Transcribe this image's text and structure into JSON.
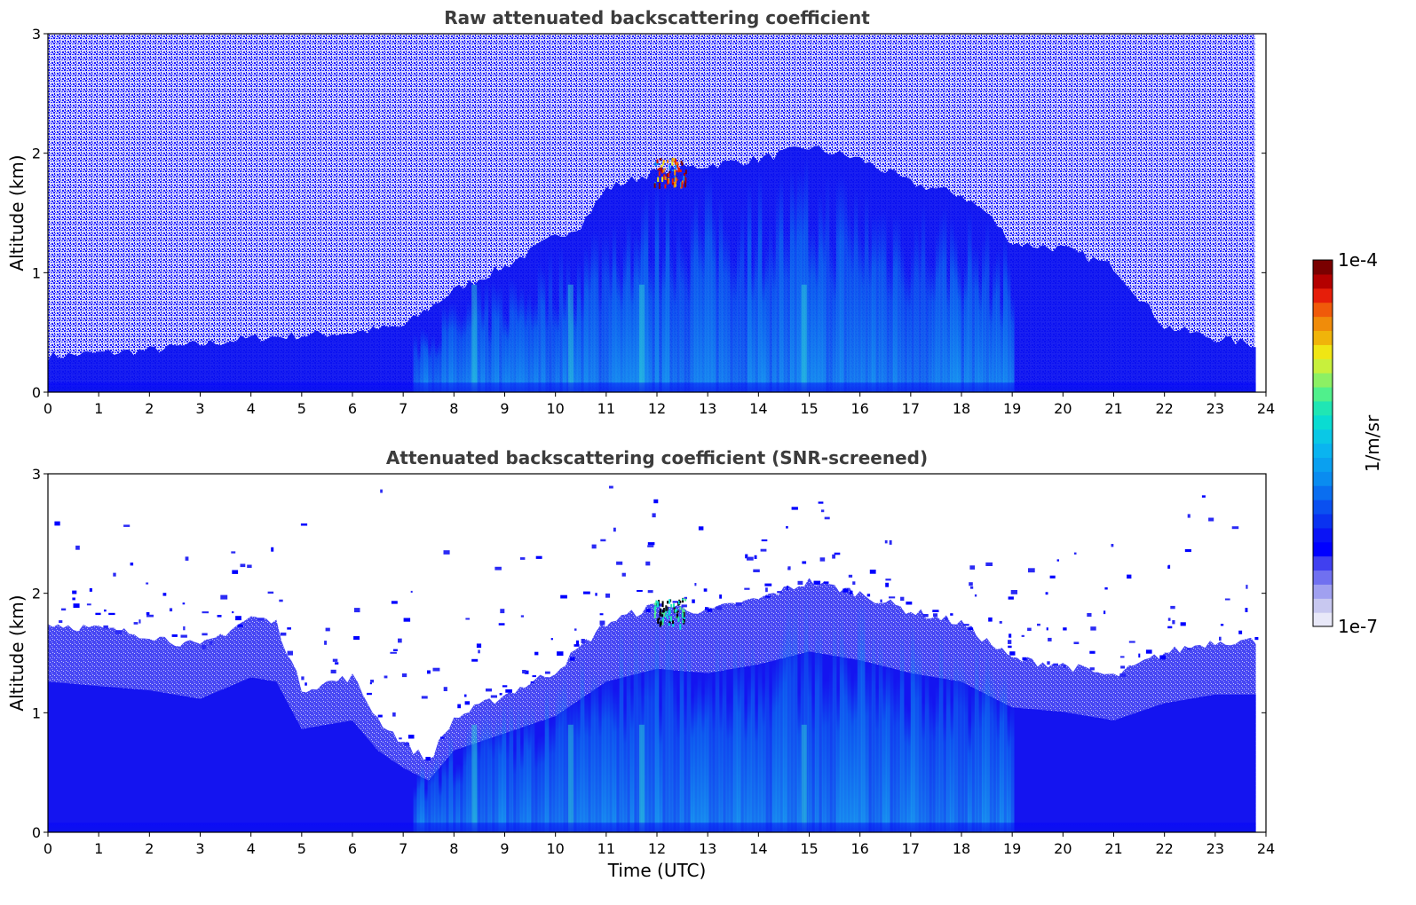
{
  "chart_data": [
    {
      "type": "heatmap",
      "title": "Raw attenuated backscattering coefficient",
      "xlabel": "",
      "ylabel": "Altitude (km)",
      "xlim": [
        0,
        24
      ],
      "ylim": [
        0,
        3
      ],
      "x_ticks": [
        "0",
        "1",
        "2",
        "3",
        "4",
        "5",
        "6",
        "7",
        "8",
        "9",
        "10",
        "11",
        "12",
        "13",
        "14",
        "15",
        "16",
        "17",
        "18",
        "19",
        "20",
        "21",
        "22",
        "23",
        "24"
      ],
      "y_ticks": [
        "0",
        "1",
        "2",
        "3"
      ],
      "data_end_hour": 23.8,
      "boundary_layer_top_km": {
        "x": [
          0,
          2,
          4,
          6,
          7,
          8,
          9,
          10,
          10.5,
          11,
          12,
          13,
          14,
          15,
          16,
          17,
          18,
          18.5,
          19,
          20,
          21,
          22,
          23,
          23.8
        ],
        "y": [
          0.3,
          0.35,
          0.45,
          0.5,
          0.55,
          0.85,
          1.05,
          1.3,
          1.4,
          1.7,
          1.85,
          1.9,
          1.95,
          2.05,
          1.95,
          1.75,
          1.65,
          1.5,
          1.25,
          1.2,
          1.05,
          0.55,
          0.45,
          0.4
        ]
      }
    },
    {
      "type": "heatmap",
      "title": "Attenuated backscattering coefficient (SNR-screened)",
      "xlabel": "Time (UTC)",
      "ylabel": "Altitude (km)",
      "xlim": [
        0,
        24
      ],
      "ylim": [
        0,
        3
      ],
      "x_ticks": [
        "0",
        "1",
        "2",
        "3",
        "4",
        "5",
        "6",
        "7",
        "8",
        "9",
        "10",
        "11",
        "12",
        "13",
        "14",
        "15",
        "16",
        "17",
        "18",
        "19",
        "20",
        "21",
        "22",
        "23",
        "24"
      ],
      "y_ticks": [
        "0",
        "1",
        "2",
        "3"
      ],
      "data_end_hour": 23.8,
      "screen_top_km": {
        "x": [
          0,
          1,
          2,
          3,
          4,
          4.5,
          5,
          6,
          6.5,
          7,
          7.5,
          8,
          9,
          10,
          10.5,
          11,
          12,
          13,
          14,
          15,
          16,
          17,
          18,
          18.5,
          19,
          20,
          21,
          22,
          23,
          23.8
        ],
        "y": [
          1.75,
          1.7,
          1.65,
          1.55,
          1.8,
          1.75,
          1.2,
          1.3,
          0.95,
          0.75,
          0.6,
          0.95,
          1.15,
          1.35,
          1.55,
          1.75,
          1.9,
          1.85,
          1.95,
          2.1,
          2.0,
          1.85,
          1.75,
          1.6,
          1.45,
          1.4,
          1.3,
          1.5,
          1.6,
          1.6
        ]
      }
    }
  ],
  "colorbar": {
    "label": "1/m/sr",
    "max_label": "1e-4",
    "min_label": "1e-7",
    "colors": [
      "#e8e8f8",
      "#c8c8f0",
      "#a0a0f0",
      "#7070f0",
      "#4040f0",
      "#0000ff",
      "#0a14f5",
      "#0a32f0",
      "#0a50f0",
      "#0a6ef0",
      "#0a8cf0",
      "#0aa0f0",
      "#0ab4f0",
      "#0ac8e6",
      "#0adcd2",
      "#20e6b4",
      "#50f08c",
      "#8cf064",
      "#c8f03c",
      "#f0e614",
      "#f0b40a",
      "#f08c0a",
      "#f05a0a",
      "#e61e0a",
      "#b40000",
      "#7a0000"
    ]
  }
}
